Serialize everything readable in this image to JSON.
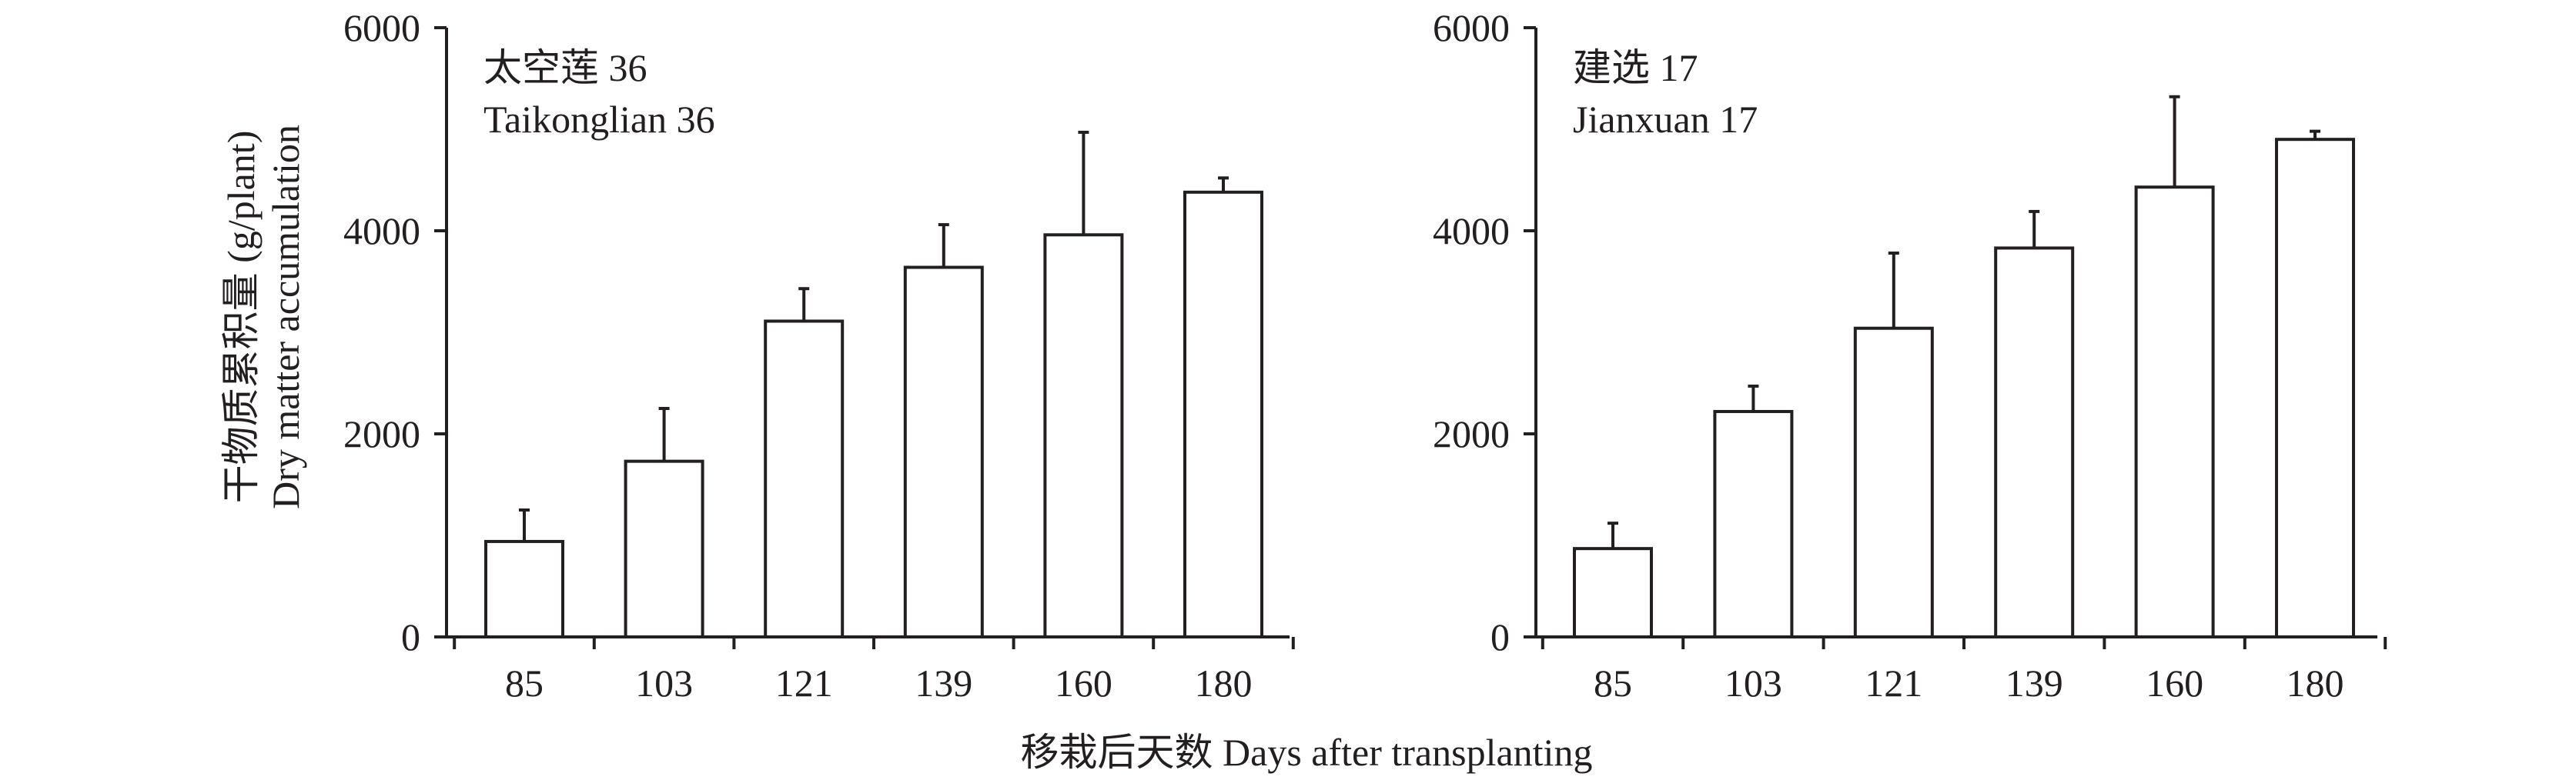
{
  "figure": {
    "y_axis_title_cn": "干物质累积量 (g/plant)",
    "y_axis_title_en": "Dry matter accumulation",
    "x_axis_title": "移栽后天数 Days after transplanting"
  },
  "chart_data": [
    {
      "type": "bar",
      "title_cn": "太空莲 36",
      "title_en": "Taikonglian 36",
      "categories": [
        "85",
        "103",
        "121",
        "139",
        "160",
        "180"
      ],
      "values": [
        940,
        1730,
        3110,
        3640,
        3960,
        4380
      ],
      "error": [
        310,
        520,
        320,
        420,
        1010,
        140
      ],
      "ylim": [
        0,
        6000
      ],
      "yticks": [
        "0",
        "2000",
        "4000",
        "6000"
      ],
      "xlabel": "Days after transplanting",
      "ylabel": "Dry matter accumulation (g/plant)",
      "grid": false
    },
    {
      "type": "bar",
      "title_cn": "建选 17",
      "title_en": "Jianxuan 17",
      "categories": [
        "85",
        "103",
        "121",
        "139",
        "160",
        "180"
      ],
      "values": [
        870,
        2220,
        3040,
        3830,
        4430,
        4900
      ],
      "error": [
        250,
        250,
        740,
        360,
        890,
        80
      ],
      "ylim": [
        0,
        6000
      ],
      "yticks": [
        "0",
        "2000",
        "4000",
        "6000"
      ],
      "xlabel": "Days after transplanting",
      "ylabel": "",
      "grid": false
    }
  ]
}
